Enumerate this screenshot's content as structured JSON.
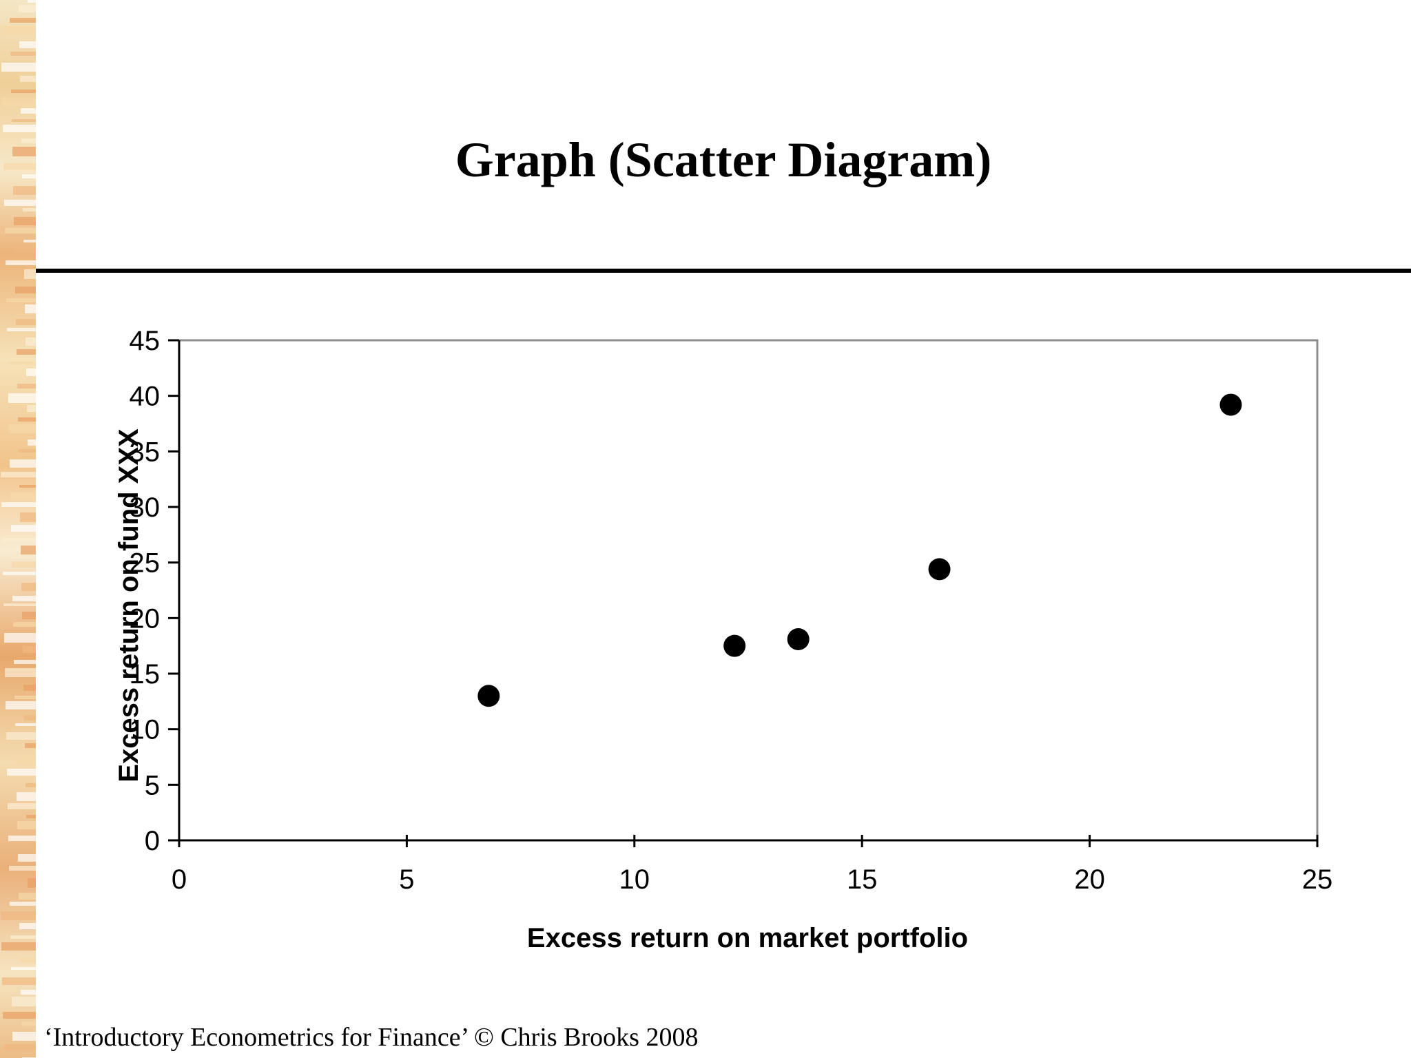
{
  "slide": {
    "title": "Graph (Scatter Diagram)",
    "footer": "‘Introductory Econometrics for Finance’ © Chris Brooks 2008"
  },
  "chart_data": {
    "type": "scatter",
    "xlabel": "Excess return on market portfolio",
    "ylabel": "Excess return on fund XXX",
    "xlim": [
      0,
      25
    ],
    "ylim": [
      0,
      45
    ],
    "xticks": [
      0,
      5,
      10,
      15,
      20,
      25
    ],
    "yticks": [
      0,
      5,
      10,
      15,
      20,
      25,
      30,
      35,
      40,
      45
    ],
    "grid": false,
    "legend": "none",
    "marker_color": "#000000",
    "points": [
      {
        "x": 6.8,
        "y": 13.0
      },
      {
        "x": 12.2,
        "y": 17.5
      },
      {
        "x": 13.6,
        "y": 18.1
      },
      {
        "x": 16.7,
        "y": 24.4
      },
      {
        "x": 23.1,
        "y": 39.2
      }
    ]
  }
}
